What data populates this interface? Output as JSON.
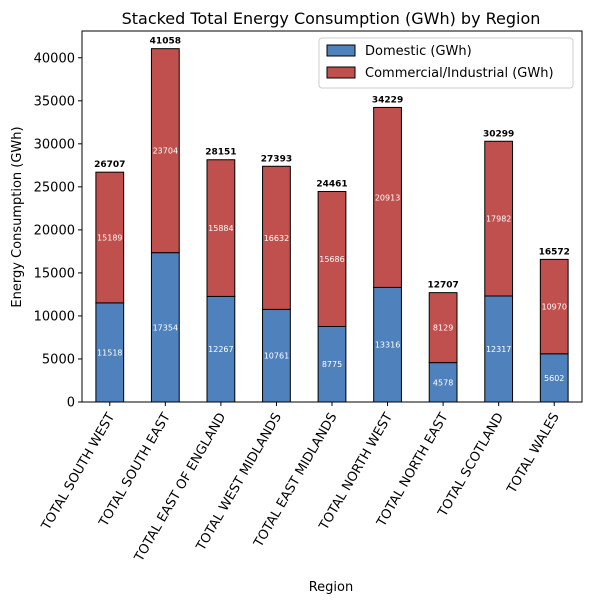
{
  "chart_data": {
    "type": "bar",
    "stacked": true,
    "title": "Stacked Total Energy Consumption (GWh) by Region",
    "xlabel": "Region",
    "ylabel": "Energy Consumption (GWh)",
    "ylim": [
      0,
      43111
    ],
    "yticks": [
      0,
      5000,
      10000,
      15000,
      20000,
      25000,
      30000,
      35000,
      40000
    ],
    "categories": [
      "TOTAL SOUTH WEST",
      "TOTAL SOUTH EAST",
      "TOTAL EAST OF ENGLAND",
      "TOTAL WEST MIDLANDS",
      "TOTAL EAST MIDLANDS",
      "TOTAL NORTH WEST",
      "TOTAL NORTH EAST",
      "TOTAL SCOTLAND",
      "TOTAL WALES"
    ],
    "series": [
      {
        "name": "Domestic (GWh)",
        "color": "#4f81bd",
        "values": [
          11518,
          17354,
          12267,
          10761,
          8775,
          13316,
          4578,
          12317,
          5602
        ]
      },
      {
        "name": "Commercial/Industrial (GWh)",
        "color": "#c0504d",
        "values": [
          15189,
          23704,
          15884,
          16632,
          15686,
          20913,
          8129,
          17982,
          10970
        ]
      }
    ],
    "totals": [
      26707,
      41058,
      28151,
      27393,
      24461,
      34229,
      12707,
      30299,
      16572
    ],
    "legend_position": "top-right",
    "grid": false
  }
}
